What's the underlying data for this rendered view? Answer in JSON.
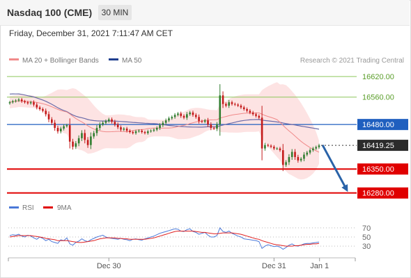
{
  "header": {
    "symbol_title": "Nasdaq 100 (CME)",
    "timeframe": "30 MIN"
  },
  "subheader": {
    "datetime": "Friday, December 31, 2021 7:11:47 AM CET"
  },
  "legend": {
    "ma20_label": "MA 20 + Bollinger Bands",
    "ma50_label": "MA 50",
    "copyright": "Research © 2021 Trading Central",
    "rsi_label": "RSI",
    "ma9_label": "9MA"
  },
  "colors": {
    "accent_blue": "#1f5fbf",
    "resistance_green": "#8cc65a",
    "support_red": "#e00000",
    "candle_up": "#2f7d2f",
    "candle_down": "#c41a1a",
    "bollinger_fill": "#fde0e0",
    "ma20": "#f08a8a",
    "ma50": "#6a6aa8",
    "rsi": "#4a78d8",
    "rsi_ma": "#e02020",
    "arrow": "#2a63a8"
  },
  "chart_data": {
    "type": "candlestick",
    "title": "Nasdaq 100 (CME)",
    "timeframe": "30 MIN",
    "x_tick_labels": [
      "Dec 30",
      "Dec 31",
      "Jan 1"
    ],
    "price_axis": {
      "ylim": [
        16255,
        16665
      ]
    },
    "last_price": 16419.25,
    "levels": [
      {
        "value": 16620.0,
        "kind": "resistance",
        "label": "16620.00"
      },
      {
        "value": 16560.0,
        "kind": "resistance",
        "label": "16560.00"
      },
      {
        "value": 16480.0,
        "kind": "pivot",
        "label": "16480.00"
      },
      {
        "value": 16350.0,
        "kind": "support",
        "label": "16350.00"
      },
      {
        "value": 16280.0,
        "kind": "support",
        "label": "16280.00"
      }
    ],
    "last_price_label": "16419.25",
    "forecast": {
      "from": 16420,
      "to": 16280
    },
    "closes": [
      16545,
      16548,
      16550,
      16553,
      16548,
      16545,
      16542,
      16545,
      16538,
      16530,
      16525,
      16520,
      16510,
      16495,
      16485,
      16470,
      16460,
      16468,
      16475,
      16478,
      16430,
      16415,
      16425,
      16440,
      16455,
      16435,
      16420,
      16445,
      16455,
      16470,
      16480,
      16485,
      16490,
      16495,
      16488,
      16480,
      16472,
      16465,
      16468,
      16462,
      16458,
      16455,
      16460,
      16462,
      16458,
      16455,
      16460,
      16462,
      16465,
      16470,
      16478,
      16485,
      16492,
      16498,
      16502,
      16508,
      16512,
      16505,
      16500,
      16510,
      16515,
      16508,
      16502,
      16490,
      16488,
      16492,
      16480,
      16470,
      16468,
      16480,
      16565,
      16540,
      16535,
      16545,
      16540,
      16538,
      16535,
      16530,
      16525,
      16520,
      16515,
      16510,
      16505,
      16500,
      16410,
      16420,
      16418,
      16415,
      16410,
      16410,
      16405,
      16362,
      16370,
      16385,
      16400,
      16385,
      16375,
      16380,
      16392,
      16398,
      16405,
      16410,
      16414,
      16419
    ],
    "rsi_panel": {
      "ticks": [
        70,
        50,
        30
      ],
      "ylim": [
        15,
        85
      ],
      "rsi": [
        53,
        55,
        54,
        56,
        52,
        50,
        54,
        52,
        48,
        45,
        50,
        47,
        42,
        45,
        40,
        38,
        36,
        44,
        42,
        48,
        35,
        32,
        38,
        41,
        46,
        42,
        40,
        44,
        47,
        50,
        52,
        54,
        50,
        48,
        47,
        46,
        45,
        47,
        45,
        44,
        42,
        45,
        46,
        44,
        43,
        46,
        48,
        50,
        52,
        55,
        58,
        60,
        62,
        64,
        66,
        68,
        67,
        63,
        62,
        66,
        68,
        62,
        60,
        56,
        58,
        60,
        54,
        50,
        50,
        53,
        70,
        62,
        60,
        63,
        58,
        55,
        52,
        50,
        46,
        45,
        44,
        43,
        42,
        40,
        25,
        30,
        33,
        31,
        29,
        30,
        28,
        23,
        27,
        32,
        35,
        31,
        30,
        32,
        35,
        36,
        36,
        37,
        38,
        39
      ],
      "ma9": [
        50,
        51,
        52,
        53,
        53,
        53,
        53,
        53,
        52,
        51,
        50,
        49,
        47,
        46,
        45,
        44,
        42,
        42,
        42,
        42,
        41,
        40,
        39,
        38,
        38,
        39,
        40,
        41,
        42,
        44,
        46,
        47,
        48,
        48,
        48,
        48,
        47,
        47,
        46,
        46,
        45,
        45,
        45,
        45,
        45,
        45,
        46,
        47,
        48,
        50,
        52,
        54,
        56,
        58,
        60,
        62,
        63,
        63,
        63,
        63,
        63,
        63,
        62,
        61,
        60,
        60,
        59,
        58,
        57,
        57,
        58,
        59,
        59,
        59,
        59,
        58,
        57,
        56,
        54,
        52,
        50,
        48,
        46,
        45,
        42,
        40,
        38,
        36,
        34,
        33,
        32,
        31,
        30,
        30,
        30,
        31,
        31,
        32,
        33,
        34,
        34,
        35,
        35,
        36
      ]
    }
  }
}
